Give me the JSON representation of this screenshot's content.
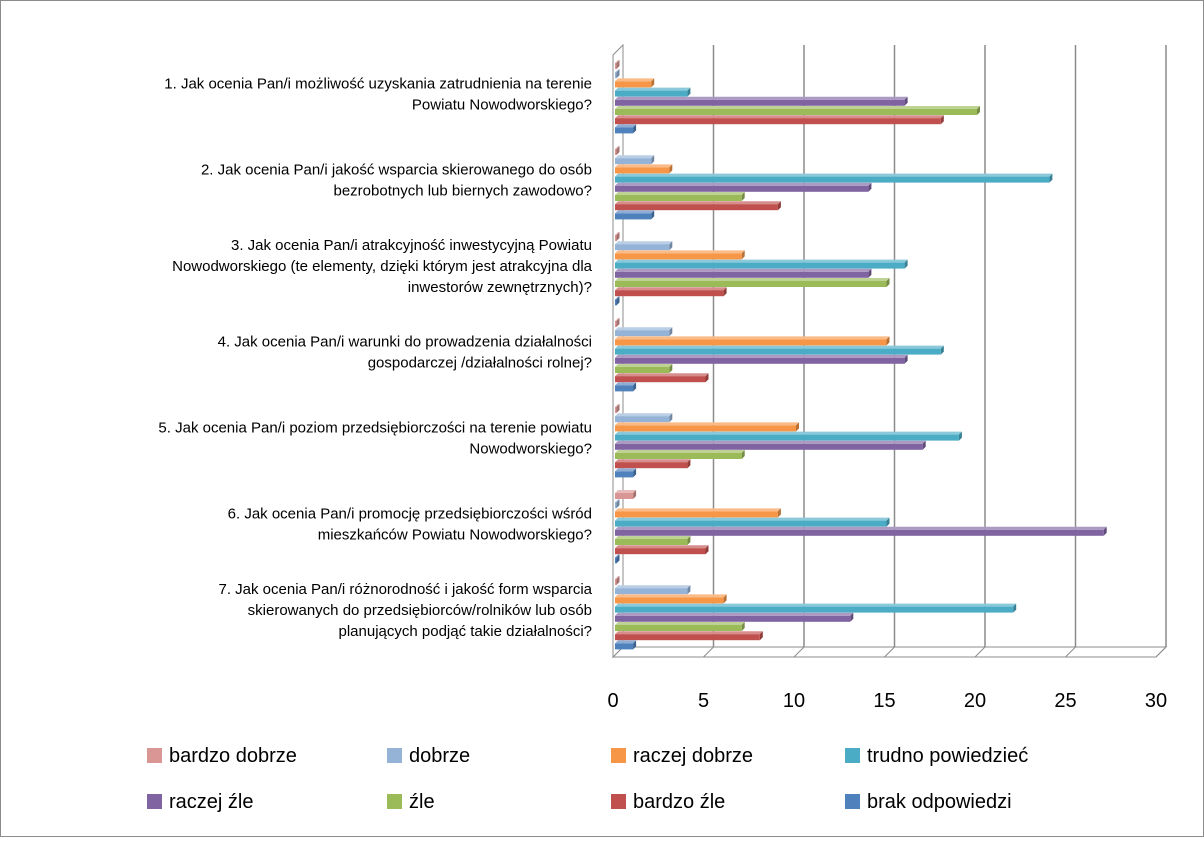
{
  "chart_data": {
    "type": "bar",
    "orientation": "horizontal",
    "style": "3d",
    "title": "",
    "xlabel": "",
    "ylabel": "",
    "xlim": [
      0,
      30
    ],
    "x_ticks": [
      "0",
      "5",
      "10",
      "15",
      "20",
      "25",
      "30"
    ],
    "grid": true,
    "legend_position": "bottom",
    "categories": [
      [
        "1. Jak ocenia Pan/i możliwość uzyskania zatrudnienia na terenie",
        "Powiatu Nowodworskiego?"
      ],
      [
        "2. Jak ocenia Pan/i jakość wsparcia skierowanego do osób",
        "bezrobotnych lub biernych zawodowo?"
      ],
      [
        "3. Jak ocenia Pan/i atrakcyjność inwestycyjną Powiatu",
        "Nowodworskiego (te elementy, dzięki którym jest atrakcyjna dla",
        "inwestorów zewnętrznych)?"
      ],
      [
        "4. Jak ocenia Pan/i warunki do prowadzenia działalności",
        "gospodarczej /działalności rolnej?"
      ],
      [
        "5. Jak ocenia Pan/i poziom przedsiębiorczości na terenie powiatu",
        "Nowodworskiego?"
      ],
      [
        "6. Jak ocenia Pan/i promocję przedsiębiorczości wśród",
        "mieszkańców Powiatu Nowodworskiego?"
      ],
      [
        "7. Jak ocenia Pan/i różnorodność i jakość form wsparcia",
        "skierowanych do przedsiębiorców/rolników lub osób",
        "planujących podjąć takie działalności?"
      ]
    ],
    "series": [
      {
        "name": "bardzo dobrze",
        "color": "#D99694",
        "values": [
          0,
          0,
          0,
          0,
          0,
          1,
          0
        ]
      },
      {
        "name": "dobrze",
        "color": "#95B3D7",
        "values": [
          0,
          2,
          3,
          3,
          3,
          0,
          4
        ]
      },
      {
        "name": "raczej dobrze",
        "color": "#F79646",
        "values": [
          2,
          3,
          7,
          15,
          10,
          9,
          6
        ]
      },
      {
        "name": "trudno powiedzieć",
        "color": "#4BACC6",
        "values": [
          4,
          24,
          16,
          18,
          19,
          15,
          22
        ]
      },
      {
        "name": "raczej źle",
        "color": "#8064A2",
        "values": [
          16,
          14,
          14,
          16,
          17,
          27,
          13
        ]
      },
      {
        "name": "źle",
        "color": "#9BBB59",
        "values": [
          20,
          7,
          15,
          3,
          7,
          4,
          7
        ]
      },
      {
        "name": "bardzo źle",
        "color": "#C0504D",
        "values": [
          18,
          9,
          6,
          5,
          4,
          5,
          8
        ]
      },
      {
        "name": "brak odpowiedzi",
        "color": "#4F81BD",
        "values": [
          1,
          2,
          0,
          1,
          1,
          0,
          1
        ]
      }
    ]
  }
}
